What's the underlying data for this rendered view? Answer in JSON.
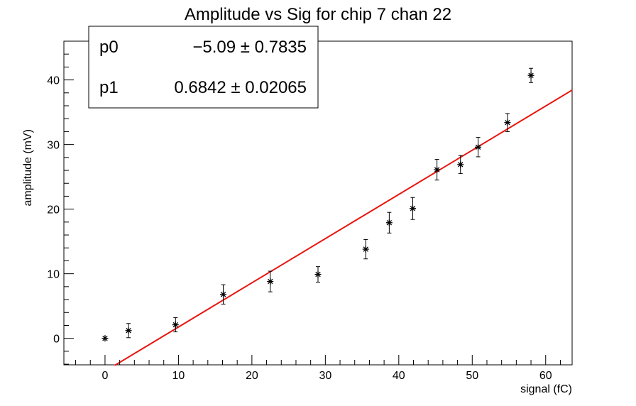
{
  "chart_data": {
    "type": "scatter",
    "title": "Amplitude vs Sig for chip 7 chan 22",
    "xlabel": "signal (fC)",
    "ylabel": "amplitude (mV)",
    "xlim": [
      -5.6,
      63.6
    ],
    "ylim": [
      -4.1,
      46
    ],
    "xticks": [
      0,
      10,
      20,
      30,
      40,
      50,
      60
    ],
    "yticks": [
      0,
      10,
      20,
      30,
      40
    ],
    "grid": false,
    "series": [
      {
        "marker": "star",
        "color": "#000000",
        "points": [
          {
            "x": 0.0,
            "y": 0.0,
            "err": 0.0
          },
          {
            "x": 3.2,
            "y": 1.2,
            "err": 1.1
          },
          {
            "x": 9.6,
            "y": 2.1,
            "err": 1.1
          },
          {
            "x": 16.1,
            "y": 6.8,
            "err": 1.5
          },
          {
            "x": 22.5,
            "y": 8.8,
            "err": 1.6
          },
          {
            "x": 29.0,
            "y": 9.9,
            "err": 1.2
          },
          {
            "x": 35.5,
            "y": 13.8,
            "err": 1.5
          },
          {
            "x": 38.7,
            "y": 17.9,
            "err": 1.6
          },
          {
            "x": 41.9,
            "y": 20.1,
            "err": 1.7
          },
          {
            "x": 45.2,
            "y": 26.1,
            "err": 1.6
          },
          {
            "x": 48.4,
            "y": 26.9,
            "err": 1.4
          },
          {
            "x": 50.8,
            "y": 29.6,
            "err": 1.5
          },
          {
            "x": 54.8,
            "y": 33.4,
            "err": 1.4
          },
          {
            "x": 58.0,
            "y": 40.7,
            "err": 1.1
          }
        ]
      }
    ],
    "fit": {
      "color": "#e8150f",
      "p0": -5.09,
      "p1": 0.6842,
      "x_range": [
        1.3,
        63.6
      ]
    },
    "stats_box": {
      "placement": "top-left",
      "rows": [
        {
          "name": "p0",
          "value": "−5.09 ± 0.7835"
        },
        {
          "name": "p1",
          "value": "0.6842 ± 0.02065"
        }
      ]
    }
  }
}
